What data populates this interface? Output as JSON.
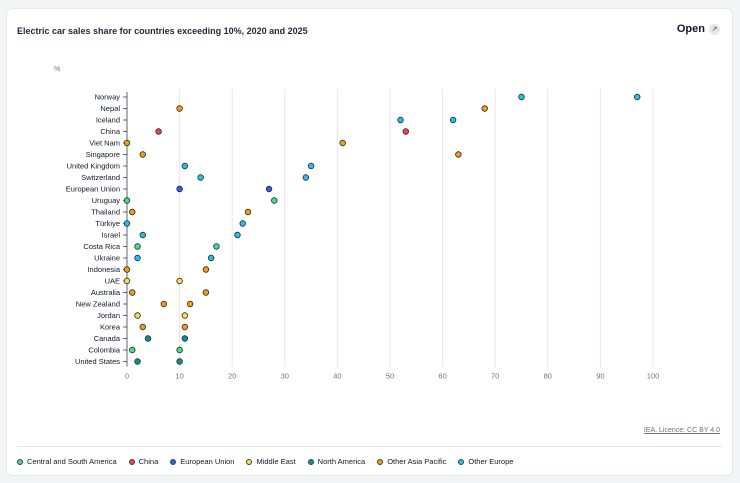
{
  "header": {
    "open_label": "Open",
    "open_icon": "expand-icon"
  },
  "licence": "IEA. Licence: CC BY 4.0",
  "chart_data": {
    "type": "scatter",
    "title": "Electric car sales share for countries exceeding 10%, 2020 and 2025",
    "unit_label": "%",
    "xlim": [
      0,
      100
    ],
    "x_ticks": [
      0,
      10,
      20,
      30,
      40,
      50,
      60,
      70,
      80,
      90,
      100
    ],
    "grid": "vertical",
    "legend_position": "bottom",
    "groups": [
      {
        "name": "Central and South America",
        "color": "#4ade80"
      },
      {
        "name": "China",
        "color": "#ef4444"
      },
      {
        "name": "European Union",
        "color": "#2563eb"
      },
      {
        "name": "Middle East",
        "color": "#fde047"
      },
      {
        "name": "North America",
        "color": "#0d9488"
      },
      {
        "name": "Other Asia Pacific",
        "color": "#f59e0b"
      },
      {
        "name": "Other Europe",
        "color": "#22c3e6"
      }
    ],
    "countries": [
      {
        "name": "Norway",
        "group": "Other Europe",
        "values": [
          75,
          97
        ]
      },
      {
        "name": "Nepal",
        "group": "Other Asia Pacific",
        "values": [
          10,
          68
        ]
      },
      {
        "name": "Iceland",
        "group": "Other Europe",
        "values": [
          52,
          62
        ]
      },
      {
        "name": "China",
        "group": "China",
        "values": [
          6,
          53
        ]
      },
      {
        "name": "Viet Nam",
        "group": "Other Asia Pacific",
        "values": [
          0,
          41
        ]
      },
      {
        "name": "Singapore",
        "group": "Other Asia Pacific",
        "values": [
          3,
          63
        ]
      },
      {
        "name": "United Kingdom",
        "group": "Other Europe",
        "values": [
          11,
          35
        ]
      },
      {
        "name": "Switzerland",
        "group": "Other Europe",
        "values": [
          14,
          34
        ]
      },
      {
        "name": "European Union",
        "group": "European Union",
        "values": [
          10,
          27
        ]
      },
      {
        "name": "Uruguay",
        "group": "Central and South America",
        "values": [
          0,
          28
        ]
      },
      {
        "name": "Thailand",
        "group": "Other Asia Pacific",
        "values": [
          1,
          23
        ]
      },
      {
        "name": "Türkiye",
        "group": "Other Europe",
        "values": [
          0,
          22
        ]
      },
      {
        "name": "Israel",
        "group": "Other Europe",
        "values": [
          3,
          21
        ]
      },
      {
        "name": "Costa Rica",
        "group": "Central and South America",
        "values": [
          2,
          17
        ]
      },
      {
        "name": "Ukraine",
        "group": "Other Europe",
        "values": [
          2,
          16
        ]
      },
      {
        "name": "Indonesia",
        "group": "Other Asia Pacific",
        "values": [
          0,
          15
        ]
      },
      {
        "name": "UAE",
        "group": "Middle East",
        "values": [
          0,
          10
        ]
      },
      {
        "name": "Australia",
        "group": "Other Asia Pacific",
        "values": [
          1,
          15
        ]
      },
      {
        "name": "New Zealand",
        "group": "Other Asia Pacific",
        "values": [
          7,
          12
        ]
      },
      {
        "name": "Jordan",
        "group": "Middle East",
        "values": [
          2,
          11
        ]
      },
      {
        "name": "Korea",
        "group": "Other Asia Pacific",
        "values": [
          3,
          11
        ]
      },
      {
        "name": "Canada",
        "group": "North America",
        "values": [
          4,
          11
        ]
      },
      {
        "name": "Colombia",
        "group": "Central and South America",
        "values": [
          1,
          10
        ]
      },
      {
        "name": "United States",
        "group": "North America",
        "values": [
          2,
          10
        ]
      }
    ]
  }
}
